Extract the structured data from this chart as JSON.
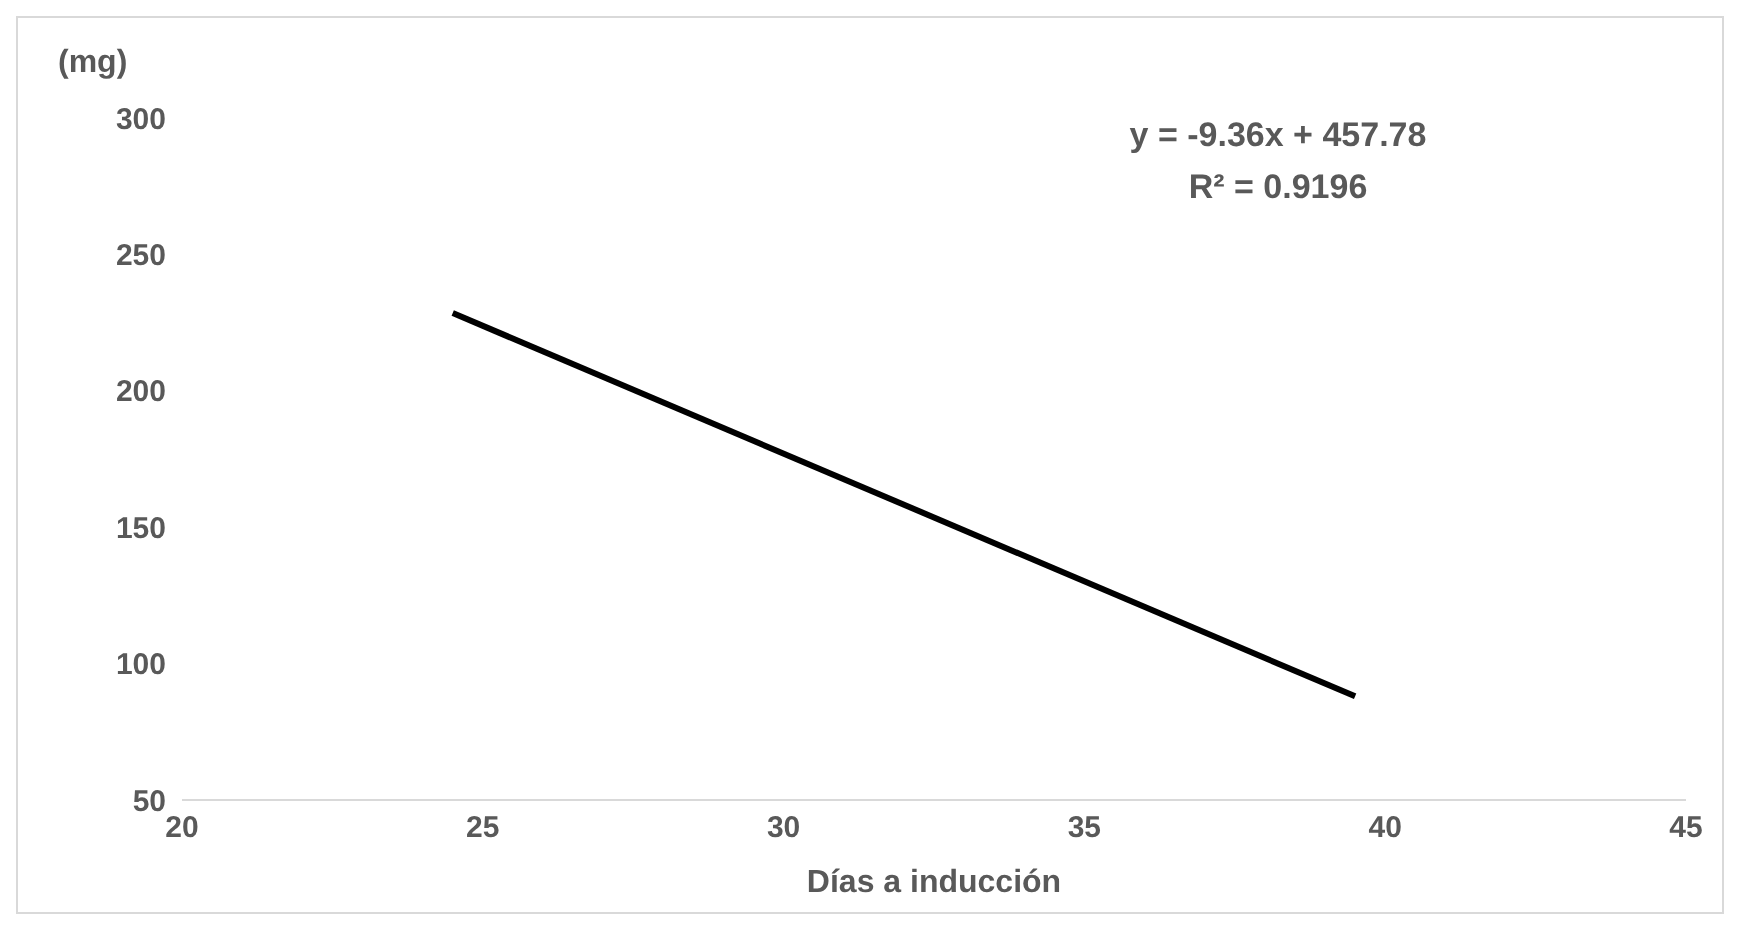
{
  "chart_data": {
    "type": "line",
    "xlabel": "Días a inducción",
    "ylabel": "(mg)",
    "annotations": [
      "y = -9.36x + 457.78",
      "R² = 0.9196"
    ],
    "xlim": [
      20,
      45
    ],
    "xticks": [
      20,
      25,
      30,
      35,
      40,
      45
    ],
    "ylim": [
      50,
      300
    ],
    "yticks": [
      50,
      100,
      150,
      200,
      250,
      300
    ],
    "series": [
      {
        "type": "line",
        "color": "#000000",
        "x": [
          24.5,
          39.5
        ],
        "values": [
          228.5,
          88
        ]
      }
    ]
  }
}
